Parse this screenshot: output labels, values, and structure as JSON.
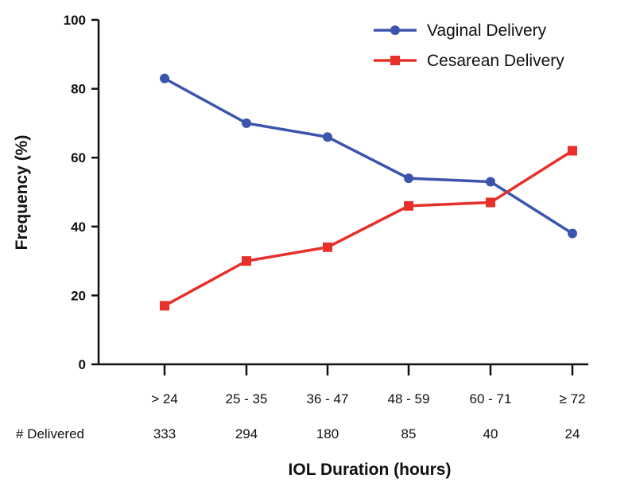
{
  "chart_data": {
    "type": "line",
    "categories": [
      "> 24",
      "25 - 35",
      "36 - 47",
      "48 - 59",
      "60 - 71",
      "≥ 72"
    ],
    "series": [
      {
        "name": "Vaginal Delivery",
        "color": "#3b55ad",
        "marker": "circle",
        "values": [
          83,
          70,
          66,
          54,
          53,
          38
        ]
      },
      {
        "name": "Cesarean Delivery",
        "color": "#e8302a",
        "marker": "square",
        "values": [
          17,
          30,
          34,
          46,
          47,
          62
        ]
      }
    ],
    "delivered_label": "# Delivered",
    "delivered_counts": [
      "333",
      "294",
      "180",
      "85",
      "40",
      "24"
    ],
    "xlabel": "IOL Duration (hours)",
    "ylabel": "Frequency (%)",
    "ylim": [
      0,
      100
    ],
    "yticks": [
      0,
      20,
      40,
      60,
      80,
      100
    ],
    "legend_position": "top-right",
    "grid": false
  }
}
